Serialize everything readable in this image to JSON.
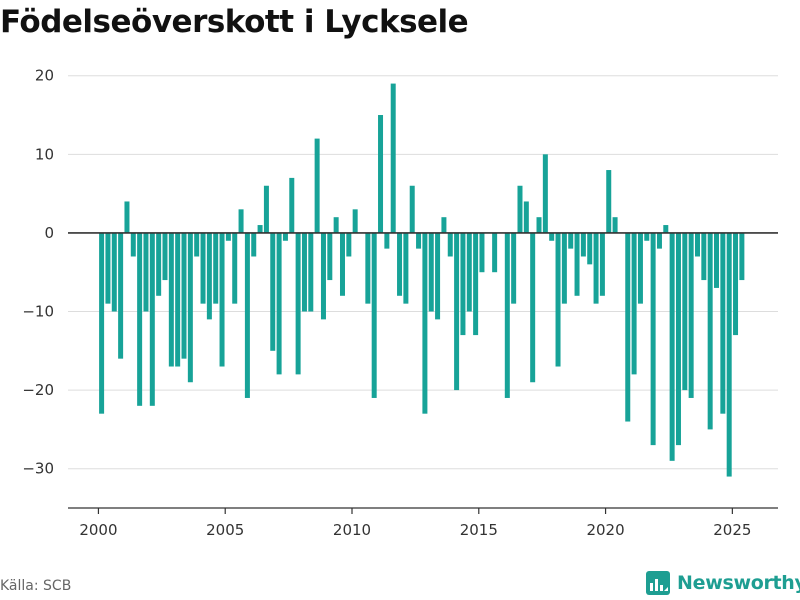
{
  "title": "Födelseöverskott i Lycksele",
  "source": "Källa: SCB",
  "brand": {
    "name": "Newsworthy",
    "icon": "newsworthy-logo-icon"
  },
  "colors": {
    "bar": "#17a398",
    "grid": "#dddddd",
    "zero_line": "#333333",
    "brand": "#1e9e92"
  },
  "chart_data": {
    "type": "bar",
    "title": "Födelseöverskott i Lycksele",
    "xlabel": "",
    "ylabel": "",
    "ylim": [
      -35,
      22
    ],
    "xlim": [
      1998.8,
      2026.8
    ],
    "grid": true,
    "y_ticks": [
      20,
      10,
      0,
      -10,
      -20,
      -30
    ],
    "x_ticks": [
      2000,
      2005,
      2010,
      2015,
      2020,
      2025
    ],
    "x": [
      "2000-01",
      "2000-04",
      "2000-07",
      "2000-10",
      "2001-01",
      "2001-04",
      "2001-07",
      "2001-10",
      "2002-01",
      "2002-04",
      "2002-07",
      "2002-10",
      "2003-01",
      "2003-04",
      "2003-07",
      "2003-10",
      "2004-01",
      "2004-04",
      "2004-07",
      "2004-10",
      "2005-01",
      "2005-04",
      "2005-07",
      "2005-10",
      "2006-01",
      "2006-04",
      "2006-07",
      "2006-10",
      "2007-01",
      "2007-04",
      "2007-07",
      "2007-10",
      "2008-01",
      "2008-04",
      "2008-07",
      "2008-10",
      "2009-01",
      "2009-04",
      "2009-07",
      "2009-10",
      "2010-01",
      "2010-04",
      "2010-07",
      "2010-10",
      "2011-01",
      "2011-04",
      "2011-07",
      "2011-10",
      "2012-01",
      "2012-04",
      "2012-07",
      "2012-10",
      "2013-01",
      "2013-04",
      "2013-07",
      "2013-10",
      "2014-01",
      "2014-04",
      "2014-07",
      "2014-10",
      "2015-01",
      "2015-04",
      "2015-07",
      "2015-10",
      "2016-01",
      "2016-04",
      "2016-07",
      "2016-10",
      "2017-01",
      "2017-04",
      "2017-07",
      "2017-10",
      "2018-01",
      "2018-04",
      "2018-07",
      "2018-10",
      "2019-01",
      "2019-04",
      "2019-07",
      "2019-10",
      "2020-01",
      "2020-04",
      "2020-07",
      "2020-10",
      "2021-01",
      "2021-04",
      "2021-07",
      "2021-10",
      "2022-01",
      "2022-04",
      "2022-07",
      "2022-10",
      "2023-01",
      "2023-04",
      "2023-07",
      "2023-10",
      "2024-01",
      "2024-04",
      "2024-07",
      "2024-10",
      "2025-01",
      "2025-04"
    ],
    "values": [
      -23,
      -9,
      -10,
      -16,
      4,
      -3,
      -22,
      -10,
      -22,
      -8,
      -6,
      -17,
      -17,
      -16,
      -19,
      -3,
      -9,
      -11,
      -9,
      -17,
      -1,
      -9,
      3,
      -21,
      -3,
      1,
      6,
      -15,
      -18,
      -1,
      7,
      -18,
      -10,
      -10,
      12,
      -11,
      -6,
      2,
      -8,
      -3,
      3,
      0,
      -9,
      -21,
      15,
      -2,
      19,
      -8,
      -9,
      6,
      -2,
      -23,
      -10,
      -11,
      2,
      -3,
      -20,
      -13,
      -10,
      -13,
      -5,
      0,
      -5,
      0,
      -21,
      -9,
      6,
      4,
      -19,
      2,
      10,
      -1,
      -17,
      -9,
      -2,
      -8,
      -3,
      -4,
      -9,
      -8,
      8,
      2,
      0,
      -24,
      -18,
      -9,
      -1,
      -27,
      -2,
      1,
      -29,
      -27,
      -20,
      -21,
      -3,
      -6,
      -25,
      -7,
      -23,
      -31,
      -13,
      -6
    ]
  }
}
